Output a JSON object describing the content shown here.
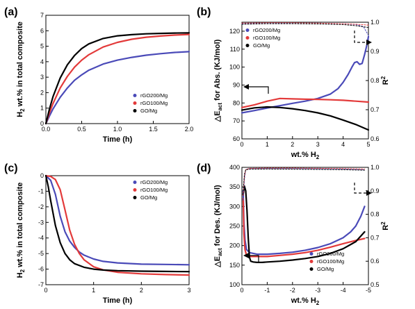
{
  "colors": {
    "blue": "#4a4ab8",
    "red": "#e33a3a",
    "black": "#000000"
  },
  "chart_data": [
    {
      "panel": "(a)",
      "type": "line",
      "xlabel": "Time (h)",
      "ylabel": "H2 wt.% in total composite",
      "xlim": [
        0,
        2.0
      ],
      "ylim": [
        0,
        7
      ],
      "xticks": [
        0,
        0.5,
        1.0,
        1.5,
        2.0
      ],
      "xtick_labels": [
        "0.0",
        "0.5",
        "1.0",
        "1.5",
        "2.0"
      ],
      "yticks": [
        0,
        1,
        2,
        3,
        4,
        5,
        6,
        7
      ],
      "ytick_labels": [
        "0",
        "1",
        "2",
        "3",
        "4",
        "5",
        "6",
        "7"
      ],
      "legend_position": "bottom-right",
      "series": [
        {
          "name": "rGO200/Mg",
          "color": "#4a4ab8",
          "x": [
            0,
            0.05,
            0.1,
            0.2,
            0.3,
            0.4,
            0.5,
            0.6,
            0.8,
            1.0,
            1.2,
            1.4,
            1.6,
            1.8,
            2.0
          ],
          "y": [
            0,
            0.5,
            0.95,
            1.7,
            2.3,
            2.8,
            3.15,
            3.45,
            3.85,
            4.1,
            4.28,
            4.42,
            4.52,
            4.6,
            4.65
          ]
        },
        {
          "name": "rGO100/Mg",
          "color": "#e33a3a",
          "x": [
            0,
            0.05,
            0.1,
            0.2,
            0.3,
            0.4,
            0.5,
            0.6,
            0.8,
            1.0,
            1.2,
            1.4,
            1.6,
            1.8,
            2.0
          ],
          "y": [
            0,
            0.7,
            1.3,
            2.3,
            3.05,
            3.65,
            4.1,
            4.45,
            4.95,
            5.25,
            5.45,
            5.58,
            5.66,
            5.72,
            5.76
          ]
        },
        {
          "name": "GO/Mg",
          "color": "#000000",
          "x": [
            0,
            0.05,
            0.1,
            0.2,
            0.3,
            0.4,
            0.5,
            0.6,
            0.8,
            1.0,
            1.2,
            1.4,
            1.6,
            1.8,
            2.0
          ],
          "y": [
            0,
            0.95,
            1.75,
            2.95,
            3.8,
            4.4,
            4.85,
            5.15,
            5.5,
            5.67,
            5.75,
            5.8,
            5.83,
            5.85,
            5.86
          ]
        }
      ]
    },
    {
      "panel": "(b)",
      "type": "line",
      "xlabel": "wt.% H2",
      "ylabel": "△Eact for Abs. (KJ/mol)",
      "y2label": "R2",
      "xlim": [
        0,
        5
      ],
      "ylim": [
        60,
        125
      ],
      "y2lim": [
        0.6,
        1.0
      ],
      "xticks": [
        0,
        1,
        2,
        3,
        4,
        5
      ],
      "xtick_labels": [
        "0",
        "1",
        "2",
        "3",
        "4",
        "5"
      ],
      "yticks": [
        60,
        70,
        80,
        90,
        100,
        110,
        120
      ],
      "ytick_labels": [
        "60",
        "70",
        "80",
        "90",
        "100",
        "110",
        "120"
      ],
      "y2ticks": [
        0.6,
        0.7,
        0.8,
        0.9,
        1.0
      ],
      "y2tick_labels": [
        "0.6",
        "0.7",
        "0.8",
        "0.9",
        "1.0"
      ],
      "legend_position": "top-left",
      "series": [
        {
          "name": "rGO200/Mg",
          "color": "#4a4ab8",
          "x": [
            0,
            0.5,
            1,
            1.5,
            2,
            2.5,
            3,
            3.5,
            3.8,
            4.0,
            4.2,
            4.35,
            4.45,
            4.55,
            4.65,
            4.75,
            4.85,
            4.95,
            5.0
          ],
          "y": [
            74.5,
            75.8,
            77.2,
            78.5,
            79.8,
            81,
            82.5,
            85,
            88,
            91.5,
            96,
            100,
            102.5,
            103,
            101.5,
            102,
            107,
            113,
            117
          ]
        },
        {
          "name": "rGO100/Mg",
          "color": "#e33a3a",
          "x": [
            0,
            0.5,
            1.0,
            1.5,
            2,
            2.5,
            3,
            3.5,
            4,
            4.5,
            5.0
          ],
          "y": [
            77.5,
            79,
            81,
            82.5,
            82.3,
            82.1,
            82,
            81.8,
            81.5,
            81,
            80.5
          ]
        },
        {
          "name": "GO/Mg",
          "color": "#000000",
          "x": [
            0,
            0.5,
            1.0,
            1.5,
            2,
            2.5,
            3,
            3.5,
            4,
            4.5,
            5.0
          ],
          "y": [
            76,
            77.3,
            77.8,
            77.5,
            76.8,
            75.8,
            74.5,
            72.8,
            70.5,
            68,
            65
          ]
        },
        {
          "name": "R2 rGO200/Mg",
          "axis": "y2",
          "color": "#4a4ab8",
          "x": [
            0,
            1,
            2,
            3,
            4,
            4.5,
            4.8,
            5.0
          ],
          "y": [
            0.995,
            0.996,
            0.997,
            0.997,
            0.995,
            0.992,
            0.985,
            0.955
          ]
        },
        {
          "name": "R2 rGO100/Mg",
          "axis": "y2",
          "color": "#e33a3a",
          "x": [
            0,
            1,
            2,
            3,
            4,
            4.5,
            5.0
          ],
          "y": [
            0.997,
            0.998,
            0.998,
            0.997,
            0.995,
            0.993,
            0.99
          ]
        },
        {
          "name": "R2 GO/Mg",
          "axis": "y2",
          "color": "#000000",
          "x": [
            0,
            1,
            2,
            3,
            4,
            4.5,
            5.0
          ],
          "y": [
            0.993,
            0.995,
            0.995,
            0.994,
            0.992,
            0.988,
            0.982
          ]
        }
      ]
    },
    {
      "panel": "(c)",
      "type": "line",
      "xlabel": "Time (h)",
      "ylabel": "H2 wt.% in total composite",
      "xlim": [
        0,
        3
      ],
      "ylim": [
        -7,
        0
      ],
      "xticks": [
        0,
        1,
        2,
        3
      ],
      "xtick_labels": [
        "0",
        "1",
        "2",
        "3"
      ],
      "yticks": [
        -7,
        -6,
        -5,
        -4,
        -3,
        -2,
        -1,
        0
      ],
      "ytick_labels": [
        "-7",
        "-6",
        "-5",
        "-4",
        "-3",
        "-2",
        "-1",
        "0"
      ],
      "legend_position": "top-right",
      "series": [
        {
          "name": "rGO200/Mg",
          "color": "#4a4ab8",
          "x": [
            0,
            0.1,
            0.2,
            0.3,
            0.4,
            0.5,
            0.6,
            0.7,
            0.8,
            1.0,
            1.2,
            1.5,
            2.0,
            2.5,
            3.0
          ],
          "y": [
            0,
            -0.3,
            -1.2,
            -2.6,
            -3.6,
            -4.2,
            -4.6,
            -4.9,
            -5.1,
            -5.35,
            -5.5,
            -5.6,
            -5.68,
            -5.7,
            -5.72
          ]
        },
        {
          "name": "rGO100/Mg",
          "color": "#e33a3a",
          "x": [
            0,
            0.1,
            0.2,
            0.3,
            0.4,
            0.5,
            0.6,
            0.7,
            0.8,
            1.0,
            1.2,
            1.5,
            2.0,
            2.5,
            3.0
          ],
          "y": [
            0,
            -0.05,
            -0.25,
            -0.9,
            -2.2,
            -3.5,
            -4.4,
            -5.0,
            -5.4,
            -5.85,
            -6.05,
            -6.2,
            -6.3,
            -6.35,
            -6.38
          ]
        },
        {
          "name": "GO/Mg",
          "color": "#000000",
          "x": [
            0,
            0.05,
            0.1,
            0.2,
            0.3,
            0.4,
            0.5,
            0.6,
            0.8,
            1.0,
            1.2,
            1.5,
            2.0,
            2.5,
            3.0
          ],
          "y": [
            0,
            -0.7,
            -1.6,
            -3.2,
            -4.3,
            -5.0,
            -5.4,
            -5.65,
            -5.88,
            -6.0,
            -6.06,
            -6.1,
            -6.13,
            -6.15,
            -6.16
          ]
        }
      ]
    },
    {
      "panel": "(d)",
      "type": "line",
      "xlabel": "wt.% H2",
      "ylabel": "△Eact for Des. (KJ/mol)",
      "y2label": "R2",
      "xlim": [
        0,
        -5
      ],
      "ylim": [
        100,
        400
      ],
      "y2lim": [
        0.5,
        1.0
      ],
      "xticks": [
        0,
        -1,
        -2,
        -3,
        -4,
        -5
      ],
      "xtick_labels": [
        "0",
        "-1",
        "-2",
        "-3",
        "-4",
        "-5"
      ],
      "yticks": [
        100,
        150,
        200,
        250,
        300,
        350,
        400
      ],
      "ytick_labels": [
        "100",
        "150",
        "200",
        "250",
        "300",
        "350",
        "400"
      ],
      "y2ticks": [
        0.5,
        0.6,
        0.7,
        0.8,
        0.9,
        1.0
      ],
      "y2tick_labels": [
        "0.5",
        "0.6",
        "0.7",
        "0.8",
        "0.9",
        "1.0"
      ],
      "legend_position": "bottom-right",
      "series": [
        {
          "name": "rGO200/Mg",
          "color": "#4a4ab8",
          "x": [
            -0.05,
            -0.08,
            -0.12,
            -0.18,
            -0.3,
            -0.6,
            -1,
            -1.5,
            -2,
            -2.5,
            -3,
            -3.5,
            -4,
            -4.3,
            -4.5,
            -4.7,
            -4.85
          ],
          "y": [
            340,
            260,
            215,
            190,
            182,
            178,
            178,
            180,
            183,
            188,
            195,
            205,
            220,
            235,
            250,
            275,
            300
          ]
        },
        {
          "name": "rGO100/Mg",
          "color": "#e33a3a",
          "x": [
            -0.05,
            -0.08,
            -0.12,
            -0.18,
            -0.3,
            -0.6,
            -1,
            -1.5,
            -2,
            -2.5,
            -3,
            -3.5,
            -4,
            -4.5,
            -4.85
          ],
          "y": [
            320,
            230,
            190,
            175,
            172,
            172,
            172,
            175,
            178,
            182,
            188,
            196,
            205,
            213,
            218
          ]
        },
        {
          "name": "GO/Mg",
          "color": "#000000",
          "x": [
            -0.05,
            -0.1,
            -0.15,
            -0.2,
            -0.25,
            -0.3,
            -0.35,
            -0.45,
            -0.6,
            -0.8,
            -1,
            -1.5,
            -2,
            -2.5,
            -3,
            -3.5,
            -4,
            -4.5,
            -4.85
          ],
          "y": [
            330,
            352,
            340,
            290,
            220,
            170,
            160,
            158,
            157,
            157,
            158,
            160,
            163,
            167,
            172,
            180,
            192,
            210,
            235
          ]
        },
        {
          "name": "R2 rGO200/Mg",
          "axis": "y2",
          "color": "#4a4ab8",
          "x": [
            -0.05,
            -0.1,
            -0.15,
            -0.3,
            -1,
            -2,
            -3,
            -4,
            -4.85
          ],
          "y": [
            0.86,
            0.95,
            0.99,
            0.995,
            0.995,
            0.995,
            0.994,
            0.993,
            0.99
          ]
        },
        {
          "name": "R2 rGO100/Mg",
          "axis": "y2",
          "color": "#e33a3a",
          "x": [
            -0.05,
            -0.1,
            -0.15,
            -0.3,
            -1,
            -2,
            -3,
            -4,
            -4.85
          ],
          "y": [
            0.88,
            0.96,
            0.99,
            0.996,
            0.997,
            0.997,
            0.996,
            0.995,
            0.993
          ]
        },
        {
          "name": "R2 GO/Mg",
          "axis": "y2",
          "color": "#000000",
          "x": [
            -0.05,
            -0.1,
            -0.15,
            -0.3,
            -1,
            -2,
            -3,
            -4,
            -4.85
          ],
          "y": [
            0.9,
            0.97,
            0.99,
            0.992,
            0.993,
            0.992,
            0.991,
            0.99,
            0.988
          ]
        }
      ]
    }
  ]
}
